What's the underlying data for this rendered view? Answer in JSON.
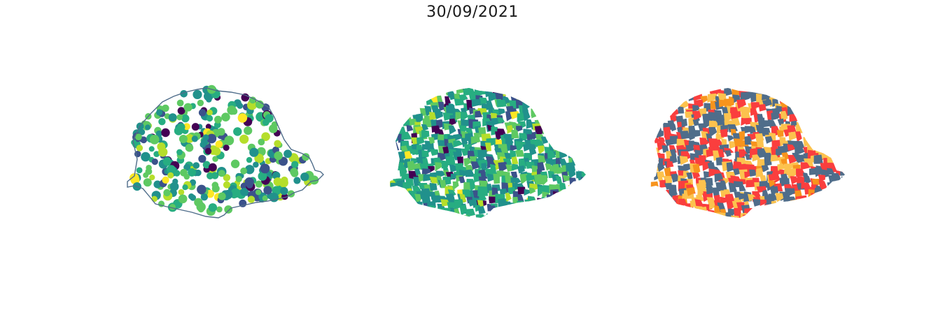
{
  "figure": {
    "title": "30/09/2021"
  },
  "panels": [
    {
      "id": "dots",
      "kind": "proportional-symbol-map"
    },
    {
      "id": "choropleth",
      "kind": "choropleth-map",
      "colormap": "viridis"
    },
    {
      "id": "categorical",
      "kind": "categorical-map"
    }
  ],
  "colors": {
    "viridis": [
      "#440154",
      "#3b528b",
      "#21918c",
      "#27ad81",
      "#5ec962",
      "#b5de2b",
      "#fde725"
    ],
    "categories": [
      "#4f6d8a",
      "#fa3e3e",
      "#fcc24e",
      "#f7941d"
    ],
    "outline": "#4f6d8a"
  }
}
